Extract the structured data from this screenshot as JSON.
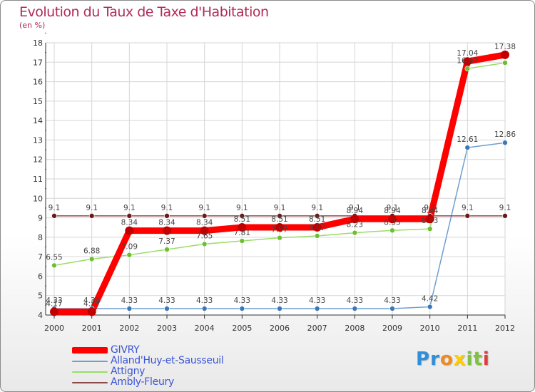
{
  "chart_data": {
    "type": "line",
    "title": "Evolution du Taux de Taxe d'Habitation",
    "subtitle": "(en %)",
    "x": [
      "2000",
      "2001",
      "2002",
      "2003",
      "2004",
      "2005",
      "2006",
      "2007",
      "2008",
      "2009",
      "2010",
      "2011",
      "2012"
    ],
    "ylim": [
      4,
      18
    ],
    "yticks": [
      "4",
      "5",
      "6",
      "7",
      "8",
      "9",
      "10",
      "11",
      "12",
      "13",
      "14",
      "15",
      "16",
      "17",
      "18"
    ],
    "grid": true,
    "legend_position": "bottom-left",
    "series": [
      {
        "name": "GIVRY",
        "color": "#ff0000",
        "marker_color": "#c00000",
        "values": [
          4.17,
          4.17,
          8.34,
          8.34,
          8.34,
          8.51,
          8.51,
          8.51,
          8.94,
          8.94,
          8.94,
          17.04,
          17.38
        ],
        "labels": [
          "4.17",
          "4.17",
          "8.34",
          "8.34",
          "8.34",
          "8.51",
          "8.51",
          "8.51",
          "8.94",
          "8.94",
          "8.94",
          "17.04",
          "17.38"
        ]
      },
      {
        "name": "Alland'Huy-et-Sausseuil",
        "color": "#6f9fd0",
        "marker_color": "#3b78b8",
        "values": [
          4.33,
          4.33,
          4.33,
          4.33,
          4.33,
          4.33,
          4.33,
          4.33,
          4.33,
          4.33,
          4.42,
          12.61,
          12.86
        ],
        "labels": [
          "4.33",
          "4.33",
          "4.33",
          "4.33",
          "4.33",
          "4.33",
          "4.33",
          "4.33",
          "4.33",
          "4.33",
          "4.42",
          "12.61",
          "12.86"
        ]
      },
      {
        "name": "Attigny",
        "color": "#99dd66",
        "marker_color": "#6dbf2e",
        "values": [
          6.55,
          6.88,
          7.09,
          7.37,
          7.65,
          7.81,
          7.97,
          8.07,
          8.23,
          8.35,
          8.43,
          16.67,
          16.97
        ],
        "labels": [
          "6.55",
          "6.88",
          "7.09",
          "7.37",
          "7.65",
          "7.81",
          "7.97",
          "8.07",
          "8.23",
          "8.35",
          "8.43",
          "16.67",
          ""
        ]
      },
      {
        "name": "Ambly-Fleury",
        "color": "#8b4a4a",
        "marker_color": "#6b1a1a",
        "values": [
          9.1,
          9.1,
          9.1,
          9.1,
          9.1,
          9.1,
          9.1,
          9.1,
          9.1,
          9.1,
          9.1,
          9.1,
          9.1
        ],
        "labels": [
          "9.1",
          "9.1",
          "9.1",
          "9.1",
          "9.1",
          "9.1",
          "9.1",
          "9.1",
          "9.1",
          "9.1",
          "9.1",
          "9.1",
          "9.1"
        ]
      }
    ]
  },
  "logo": {
    "letters": [
      "P",
      "r",
      "o",
      "x",
      "i",
      "t",
      "i"
    ],
    "colors": [
      "#2f8fd8",
      "#2f8fd8",
      "#f08a1e",
      "#ffcc00",
      "#7fc241",
      "#7fc241",
      "#e23b3b"
    ]
  }
}
